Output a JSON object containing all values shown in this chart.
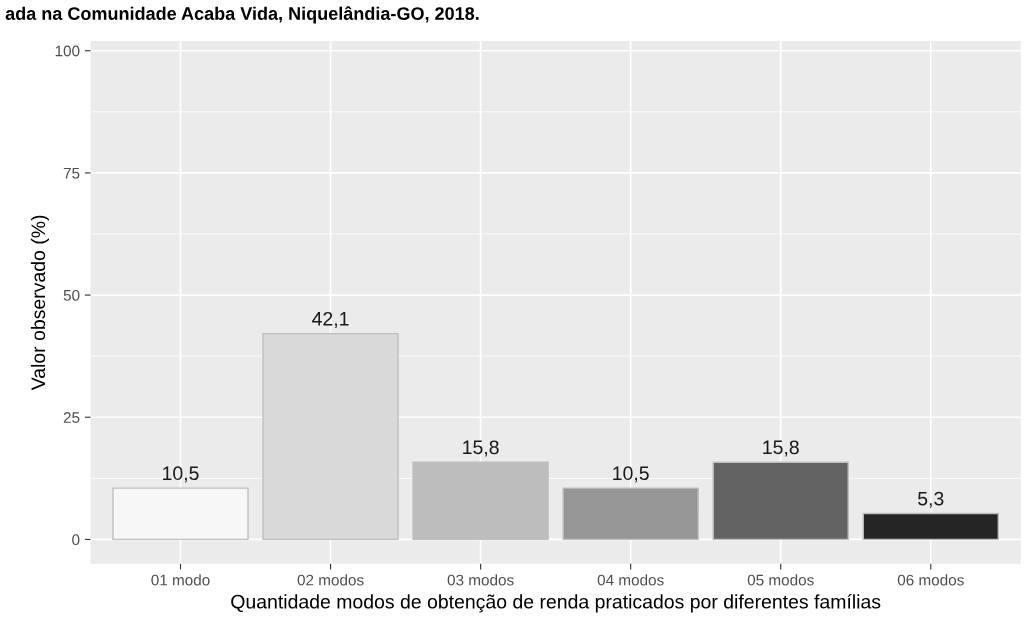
{
  "chart_data": {
    "type": "bar",
    "title": "ada na Comunidade Acaba Vida, Niquelândia-GO, 2018.",
    "xlabel": "Quantidade modos de obtenção de renda praticados por diferentes famílias",
    "ylabel": "Valor observado (%)",
    "categories": [
      "01 modo",
      "02 modos",
      "03 modos",
      "04 modos",
      "05 modos",
      "06 modos"
    ],
    "values": [
      10.5,
      42.1,
      15.8,
      10.5,
      15.8,
      5.3
    ],
    "value_labels": [
      "10,5",
      "42,1",
      "15,8",
      "10,5",
      "15,8",
      "5,3"
    ],
    "colors": [
      "#f7f7f7",
      "#d9d9d9",
      "#bdbdbd",
      "#969696",
      "#636363",
      "#252525"
    ],
    "ylim": [
      -5,
      102
    ],
    "yticks": [
      0,
      25,
      50,
      75,
      100
    ],
    "grid": true,
    "legend": false
  }
}
